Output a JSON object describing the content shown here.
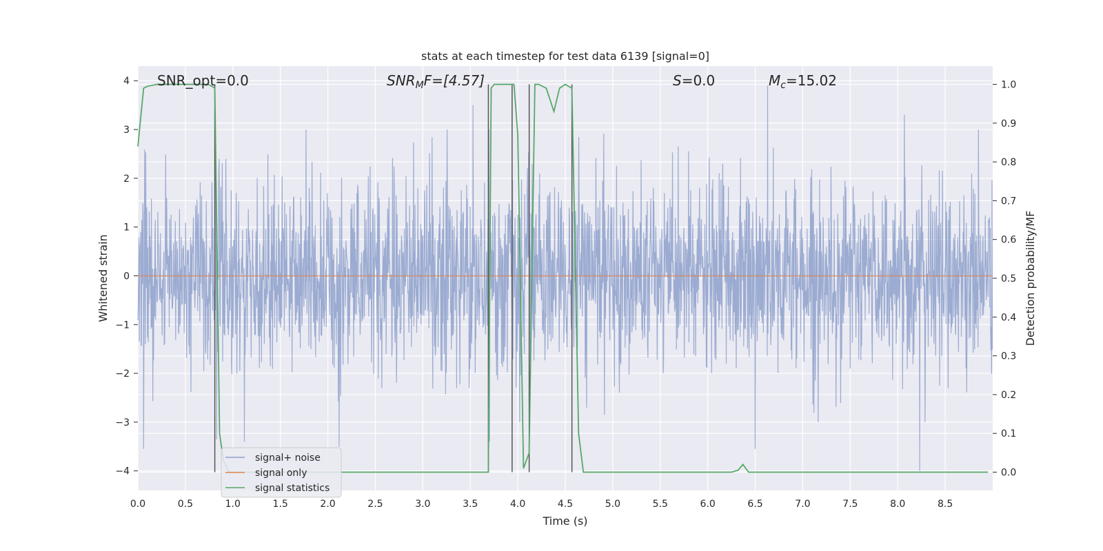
{
  "chart_data": {
    "type": "line",
    "title": "stats at each timestep for test data 6139 [signal=0]",
    "xlabel": "Time (s)",
    "ylabel": "Whitened strain",
    "ylabel_right": "Detection probability/MF",
    "xlim": [
      0.0,
      9.0
    ],
    "ylim": [
      -4.4,
      4.3
    ],
    "ylim_right": [
      -0.047,
      1.047
    ],
    "xticks": [
      "0.0",
      "0.5",
      "1.0",
      "1.5",
      "2.0",
      "2.5",
      "3.0",
      "3.5",
      "4.0",
      "4.5",
      "5.0",
      "5.5",
      "6.0",
      "6.5",
      "7.0",
      "7.5",
      "8.0",
      "8.5"
    ],
    "yticks": [
      "4",
      "3",
      "2",
      "1",
      "0",
      "−1",
      "−2",
      "−3",
      "−4"
    ],
    "yticks_right": [
      "1.0",
      "0.9",
      "0.8",
      "0.7",
      "0.6",
      "0.5",
      "0.4",
      "0.3",
      "0.2",
      "0.1",
      "0.0"
    ],
    "grid": true,
    "legend_position": "lower-left",
    "annotations": {
      "snr_opt": "SNR_opt=0.0",
      "snr_mf_base": "SNR",
      "snr_mf_sub": "M",
      "snr_mf_rest": "F=[4.57]",
      "s_var": "S",
      "s_rest": "=0.0",
      "mc_var": "M",
      "mc_sub": "c",
      "mc_rest": "=15.02"
    },
    "vlines_x": [
      0.81,
      3.69,
      3.94,
      4.12,
      4.57
    ],
    "series": [
      {
        "name": "signal+ noise",
        "color": "#8da0cb",
        "description": "whitened noise samples, sampling across 0–9 s, amplitude roughly within -3.6 to 3.9, typical envelope ±1.6",
        "peak_values": [
          {
            "x": 0.06,
            "y": -3.55
          },
          {
            "x": 0.83,
            "y": -3.35
          },
          {
            "x": 1.12,
            "y": -3.4
          },
          {
            "x": 2.12,
            "y": -3.5
          },
          {
            "x": 3.7,
            "y": -3.4
          },
          {
            "x": 6.5,
            "y": -3.55
          },
          {
            "x": 8.23,
            "y": -4.0
          },
          {
            "x": 6.63,
            "y": 3.9
          },
          {
            "x": 8.07,
            "y": 3.3
          },
          {
            "x": 3.53,
            "y": 3.5
          }
        ]
      },
      {
        "name": "signal only",
        "color": "#dd8452",
        "x": [
          0.0,
          9.0
        ],
        "y": [
          0.0,
          0.0
        ]
      },
      {
        "name": "signal statistics",
        "color": "#55a868",
        "axis": "right",
        "x": [
          0.0,
          0.06,
          0.1,
          0.2,
          0.4,
          0.6,
          0.74,
          0.78,
          0.81,
          0.86,
          0.9,
          0.96,
          1.1,
          1.5,
          2.0,
          2.5,
          3.0,
          3.5,
          3.69,
          3.72,
          3.75,
          3.8,
          3.9,
          3.96,
          4.0,
          4.06,
          4.12,
          4.18,
          4.22,
          4.3,
          4.38,
          4.44,
          4.5,
          4.57,
          4.64,
          4.69,
          4.8,
          5.5,
          6.0,
          6.25,
          6.32,
          6.37,
          6.43,
          7.0,
          8.0,
          8.95
        ],
        "y": [
          0.84,
          0.99,
          0.995,
          1.0,
          1.0,
          1.0,
          1.0,
          0.995,
          0.99,
          0.1,
          0.03,
          0.0,
          0.0,
          0.0,
          0.0,
          0.0,
          0.0,
          0.0,
          0.0,
          0.99,
          1.0,
          1.0,
          1.0,
          1.0,
          0.87,
          0.01,
          0.05,
          1.0,
          1.0,
          0.99,
          0.93,
          0.99,
          1.0,
          0.99,
          0.1,
          0.0,
          0.0,
          0.0,
          0.0,
          0.0,
          0.005,
          0.02,
          0.0,
          0.0,
          0.0,
          0.0
        ]
      }
    ]
  }
}
